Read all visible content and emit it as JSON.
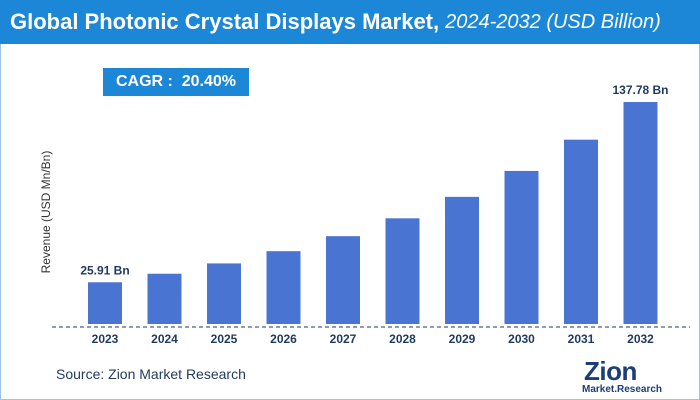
{
  "header": {
    "title": "Global Photonic Crystal Displays Market,",
    "subtitle": "2024-2032 (USD Billion)"
  },
  "cagr": {
    "label": "CAGR :  20.40%"
  },
  "source": {
    "text": "Source: Zion Market Research"
  },
  "logo": {
    "text": "Zion",
    "subtext": "Market.Research"
  },
  "colors": {
    "header": "#1b87d6",
    "bar": "#4a74d2",
    "value_label": "#1f3a5f"
  },
  "chart_data": {
    "type": "bar",
    "categories": [
      "2023",
      "2024",
      "2025",
      "2026",
      "2027",
      "2028",
      "2029",
      "2030",
      "2031",
      "2032"
    ],
    "values": [
      25.91,
      31.2,
      37.6,
      45.2,
      54.5,
      65.6,
      78.9,
      95.0,
      114.4,
      137.78
    ],
    "value_labels": {
      "2023": "25.91 Bn",
      "2032": "137.78 Bn"
    },
    "title": "Global Photonic Crystal Displays Market, 2024-2032 (USD Billion)",
    "xlabel": "",
    "ylabel": "Revenue (USD Mn/Bn)",
    "ylim": [
      0,
      150
    ],
    "grid": false,
    "legend": "none"
  }
}
